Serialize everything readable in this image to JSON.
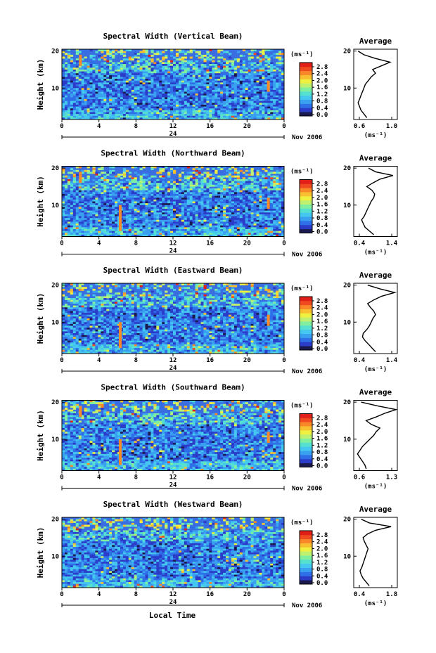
{
  "colorscale": [
    "#1a1a4e",
    "#2b3cc8",
    "#2f6fe8",
    "#3aa0f0",
    "#45c8f0",
    "#55e0d0",
    "#80f0a0",
    "#c0f070",
    "#f0f040",
    "#f8c030",
    "#f88828",
    "#f04a20",
    "#e02018"
  ],
  "colorbar": {
    "unit_label": "(ms⁻¹)",
    "ticks": [
      "2.8",
      "2.4",
      "2.0",
      "1.6",
      "1.2",
      "0.8",
      "0.4",
      "0.0"
    ]
  },
  "common": {
    "height_axis_label": "Height (km)",
    "height_ticks": [
      "20",
      "10"
    ],
    "time_ticks": [
      "0",
      "4",
      "8",
      "12",
      "16",
      "20",
      "0"
    ],
    "day_label": "24",
    "month_label": "Nov 2006",
    "average_title": "Average",
    "average_unit": "(ms⁻¹)",
    "xlabel": "Local Time"
  },
  "chart_data": [
    {
      "type": "heatmap",
      "title": "Spectral Width (Vertical Beam)",
      "ylabel": "Height (km)",
      "xlabel": "Local Time",
      "x_range_hours": [
        0,
        24
      ],
      "y_range_km": [
        1.5,
        20.5
      ],
      "value_range": [
        0.0,
        2.8
      ],
      "average_profile": {
        "xlim": [
          0.6,
          1.2
        ],
        "xticks": [
          "0.6",
          "1.0"
        ],
        "height_km": [
          2,
          3,
          4,
          5,
          6,
          7,
          8,
          9,
          10,
          11,
          12,
          13,
          14,
          15,
          16,
          17,
          18,
          19,
          20
        ],
        "values": [
          0.78,
          0.74,
          0.7,
          0.68,
          0.66,
          0.68,
          0.7,
          0.72,
          0.74,
          0.76,
          0.8,
          0.84,
          0.9,
          0.86,
          0.98,
          1.1,
          0.9,
          0.74,
          0.66
        ]
      }
    },
    {
      "type": "heatmap",
      "title": "Spectral Width (Northward Beam)",
      "ylabel": "Height (km)",
      "xlabel": "Local Time",
      "x_range_hours": [
        0,
        24
      ],
      "y_range_km": [
        1.5,
        20.5
      ],
      "value_range": [
        0.0,
        2.8
      ],
      "average_profile": {
        "xlim": [
          0.4,
          1.4
        ],
        "xticks": [
          "0.4",
          "1.4"
        ],
        "height_km": [
          2,
          3,
          4,
          5,
          6,
          7,
          8,
          9,
          10,
          11,
          12,
          13,
          14,
          15,
          16,
          17,
          18,
          19,
          20
        ],
        "values": [
          0.86,
          0.76,
          0.66,
          0.62,
          0.58,
          0.64,
          0.68,
          0.72,
          0.76,
          0.8,
          0.86,
          0.88,
          0.82,
          0.7,
          0.84,
          1.0,
          1.3,
          0.9,
          0.74
        ]
      }
    },
    {
      "type": "heatmap",
      "title": "Spectral Width (Eastward Beam)",
      "ylabel": "Height (km)",
      "xlabel": "Local Time",
      "x_range_hours": [
        0,
        24
      ],
      "y_range_km": [
        1.5,
        20.5
      ],
      "value_range": [
        0.0,
        2.8
      ],
      "average_profile": {
        "xlim": [
          0.4,
          1.4
        ],
        "xticks": [
          "0.4",
          "1.4"
        ],
        "height_km": [
          2,
          3,
          4,
          5,
          6,
          7,
          8,
          9,
          10,
          11,
          12,
          13,
          14,
          15,
          16,
          17,
          18,
          19,
          20
        ],
        "values": [
          0.9,
          0.82,
          0.74,
          0.66,
          0.6,
          0.62,
          0.7,
          0.76,
          0.8,
          0.84,
          0.9,
          0.86,
          0.78,
          0.72,
          0.86,
          1.04,
          1.34,
          1.0,
          0.72
        ]
      }
    },
    {
      "type": "heatmap",
      "title": "Spectral Width (Southward Beam)",
      "ylabel": "Height (km)",
      "xlabel": "Local Time",
      "x_range_hours": [
        0,
        24
      ],
      "y_range_km": [
        1.5,
        20.5
      ],
      "value_range": [
        0.0,
        2.8
      ],
      "average_profile": {
        "xlim": [
          0.6,
          1.3
        ],
        "xticks": [
          "0.6",
          "1.3"
        ],
        "height_km": [
          2,
          3,
          4,
          5,
          6,
          7,
          8,
          9,
          10,
          11,
          12,
          13,
          14,
          15,
          16,
          17,
          18,
          19,
          20
        ],
        "values": [
          0.8,
          0.78,
          0.74,
          0.7,
          0.66,
          0.7,
          0.74,
          0.8,
          0.86,
          0.92,
          0.96,
          1.02,
          0.88,
          0.8,
          0.96,
          1.1,
          1.28,
          0.98,
          0.72
        ]
      }
    },
    {
      "type": "heatmap",
      "title": "Spectral Width (Westward Beam)",
      "ylabel": "Height (km)",
      "xlabel": "Local Time",
      "x_range_hours": [
        0,
        24
      ],
      "y_range_km": [
        1.5,
        20.5
      ],
      "value_range": [
        0.0,
        2.8
      ],
      "average_profile": {
        "xlim": [
          0.4,
          1.8
        ],
        "xticks": [
          "0.4",
          "1.8"
        ],
        "height_km": [
          2,
          3,
          4,
          5,
          6,
          7,
          8,
          9,
          10,
          11,
          12,
          13,
          14,
          15,
          16,
          17,
          18,
          19,
          20
        ],
        "values": [
          0.9,
          0.8,
          0.7,
          0.64,
          0.6,
          0.66,
          0.7,
          0.74,
          0.78,
          0.82,
          0.86,
          0.8,
          0.74,
          0.7,
          0.84,
          1.1,
          1.6,
          0.9,
          0.64
        ]
      }
    }
  ]
}
